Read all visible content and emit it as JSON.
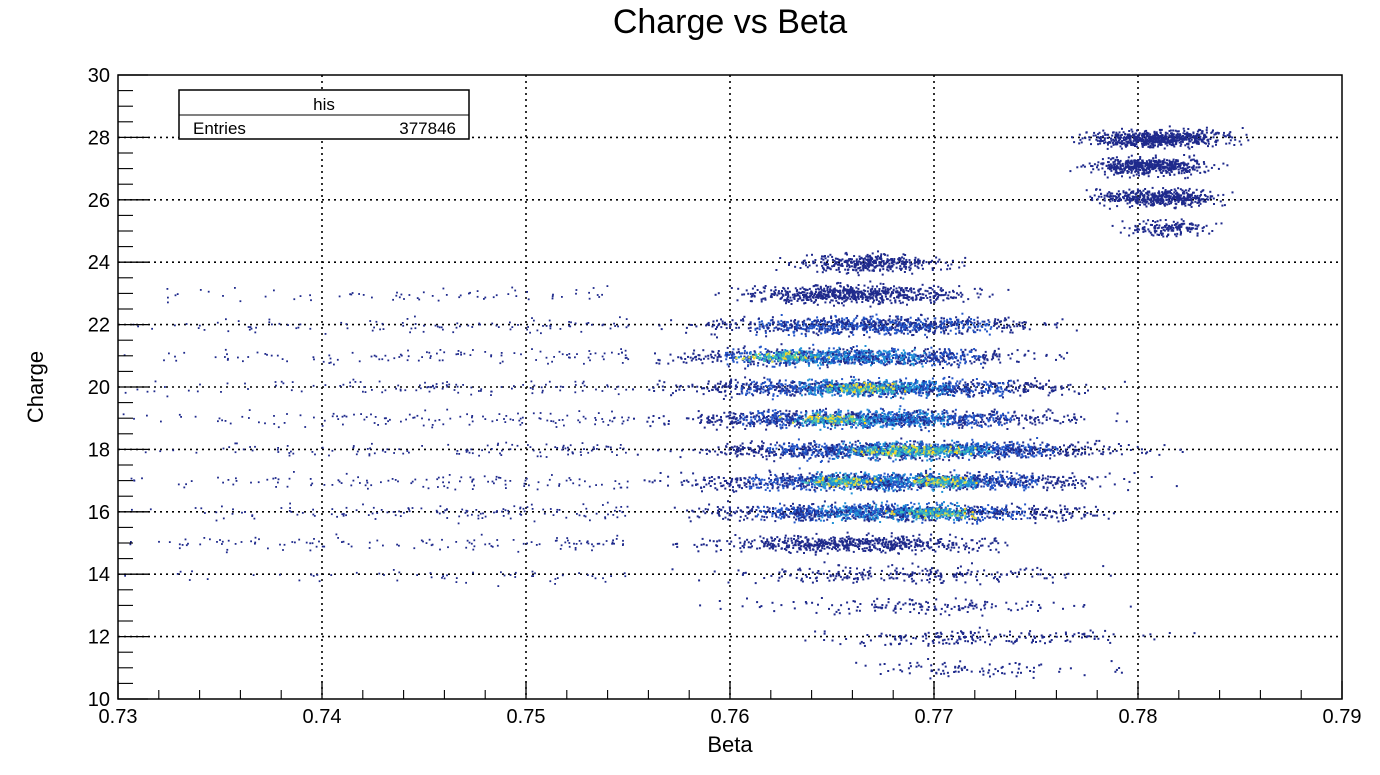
{
  "chart_data": {
    "type": "heatmap",
    "title": "Charge vs Beta",
    "xlabel": "Beta",
    "ylabel": "Charge",
    "xlim": [
      0.73,
      0.79
    ],
    "ylim": [
      10,
      30
    ],
    "x_ticks": [
      "0.73",
      "0.74",
      "0.75",
      "0.76",
      "0.77",
      "0.78",
      "0.79"
    ],
    "y_ticks": [
      "10",
      "12",
      "14",
      "16",
      "18",
      "20",
      "22",
      "24",
      "26",
      "28",
      "30"
    ],
    "grid": true,
    "colormap": [
      "#1f2a8c",
      "#2255c8",
      "#1f8fd6",
      "#3cc1b8",
      "#d9e04a",
      "#ffd21a"
    ],
    "stats_box": {
      "name": "his",
      "entries_label": "Entries",
      "entries_value": "377846"
    },
    "bands": [
      {
        "charge": 28.0,
        "beta_center": 0.781,
        "beta_width": 0.003,
        "weight": 0.45
      },
      {
        "charge": 27.1,
        "beta_center": 0.7805,
        "beta_width": 0.0025,
        "weight": 0.35
      },
      {
        "charge": 26.1,
        "beta_center": 0.781,
        "beta_width": 0.0025,
        "weight": 0.3
      },
      {
        "charge": 25.1,
        "beta_center": 0.7815,
        "beta_width": 0.002,
        "weight": 0.1
      },
      {
        "charge": 24.0,
        "beta_center": 0.767,
        "beta_width": 0.003,
        "weight": 0.25
      },
      {
        "charge": 23.0,
        "beta_center": 0.766,
        "beta_width": 0.0045,
        "weight": 0.45
      },
      {
        "charge": 22.0,
        "beta_center": 0.767,
        "beta_width": 0.0065,
        "weight": 0.6
      },
      {
        "charge": 21.0,
        "beta_center": 0.766,
        "beta_width": 0.007,
        "weight": 0.75
      },
      {
        "charge": 20.0,
        "beta_center": 0.767,
        "beta_width": 0.0075,
        "weight": 0.85
      },
      {
        "charge": 19.0,
        "beta_center": 0.767,
        "beta_width": 0.0075,
        "weight": 0.9
      },
      {
        "charge": 18.0,
        "beta_center": 0.769,
        "beta_width": 0.008,
        "weight": 1.0
      },
      {
        "charge": 17.0,
        "beta_center": 0.768,
        "beta_width": 0.008,
        "weight": 1.0
      },
      {
        "charge": 16.0,
        "beta_center": 0.768,
        "beta_width": 0.0075,
        "weight": 0.85
      },
      {
        "charge": 15.0,
        "beta_center": 0.766,
        "beta_width": 0.006,
        "weight": 0.4
      },
      {
        "charge": 14.0,
        "beta_center": 0.768,
        "beta_width": 0.007,
        "weight": 0.15
      },
      {
        "charge": 13.0,
        "beta_center": 0.769,
        "beta_width": 0.007,
        "weight": 0.1
      },
      {
        "charge": 12.0,
        "beta_center": 0.772,
        "beta_width": 0.007,
        "weight": 0.12
      },
      {
        "charge": 11.0,
        "beta_center": 0.772,
        "beta_width": 0.005,
        "weight": 0.06
      }
    ],
    "hot_spots": [
      {
        "charge": 18.0,
        "beta": 0.768
      },
      {
        "charge": 18.0,
        "beta": 0.77
      },
      {
        "charge": 17.0,
        "beta": 0.7655
      },
      {
        "charge": 17.0,
        "beta": 0.7705
      },
      {
        "charge": 20.0,
        "beta": 0.7665
      },
      {
        "charge": 16.0,
        "beta": 0.77
      },
      {
        "charge": 21.0,
        "beta": 0.7625
      },
      {
        "charge": 19.0,
        "beta": 0.765
      }
    ]
  }
}
